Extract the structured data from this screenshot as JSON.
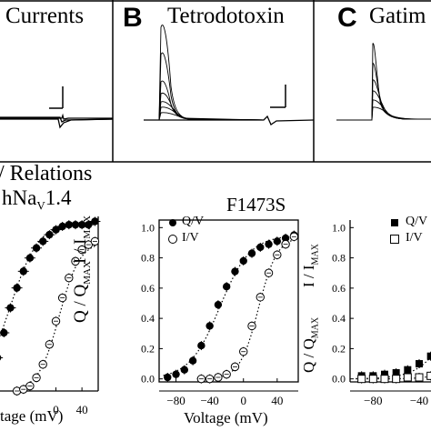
{
  "panels": {
    "a_title": "Currents",
    "b_letter": "B",
    "b_title": "Tetrodotoxin",
    "c_letter": "C",
    "c_title": "Gatim",
    "section_title": "Relations",
    "left_title": "hNa",
    "left_title_sub": "V",
    "left_title_suffix": "1.4",
    "mid_title": "F1473S"
  },
  "axes": {
    "xlabel": "Voltage (mV)",
    "xlabel_left": "tage (mV)",
    "ylabel_mid_q": "Q / Q",
    "ylabel_mid_q_sub": "MAX",
    "ylabel_mid_i": "I / I",
    "ylabel_mid_i_sub": "MAX",
    "ylabel_right_i": "I / I",
    "ylabel_right_i_sub": "MAX",
    "ylabel_right_q": "Q / Q",
    "ylabel_right_q_sub": "MAX"
  },
  "legend": {
    "qv": "Q/V",
    "iv": "I/V"
  },
  "chart_data": [
    {
      "type": "scatter",
      "panel": "left",
      "series": [
        {
          "marker": "filled-cross-circle",
          "x": [
            -90,
            -80,
            -70,
            -60,
            -50,
            -40,
            -30,
            -20,
            -10,
            0,
            10,
            20,
            30,
            40,
            50,
            60
          ],
          "y": [
            0.2,
            0.35,
            0.5,
            0.62,
            0.72,
            0.8,
            0.86,
            0.9,
            0.94,
            0.97,
            0.99,
            1.0,
            1.0,
            1.0,
            1.0,
            1.02
          ]
        },
        {
          "marker": "open-circle",
          "x": [
            -60,
            -50,
            -40,
            -30,
            -20,
            -10,
            0,
            10,
            20,
            30,
            40,
            50,
            60
          ],
          "y": [
            0.0,
            0.01,
            0.03,
            0.08,
            0.16,
            0.28,
            0.42,
            0.56,
            0.68,
            0.78,
            0.85,
            0.88,
            0.9
          ]
        }
      ],
      "xticks": [
        0,
        40
      ],
      "xlim": [
        -100,
        65
      ],
      "ylim": [
        0,
        1.05
      ]
    },
    {
      "type": "scatter",
      "panel": "F1473S",
      "title": "F1473S",
      "series": [
        {
          "name": "Q/V",
          "marker": "filled-circle",
          "x": [
            -90,
            -80,
            -70,
            -60,
            -50,
            -40,
            -30,
            -20,
            -10,
            0,
            10,
            20,
            30,
            40,
            50,
            60
          ],
          "y": [
            0.01,
            0.03,
            0.06,
            0.12,
            0.22,
            0.35,
            0.49,
            0.61,
            0.71,
            0.78,
            0.83,
            0.87,
            0.89,
            0.91,
            0.93,
            0.95
          ]
        },
        {
          "name": "I/V",
          "marker": "open-circle",
          "x": [
            -50,
            -40,
            -30,
            -20,
            -10,
            0,
            10,
            20,
            30,
            40,
            50,
            60
          ],
          "y": [
            0.0,
            0.0,
            0.01,
            0.03,
            0.08,
            0.18,
            0.35,
            0.54,
            0.7,
            0.82,
            0.89,
            0.94
          ]
        }
      ],
      "xticks": [
        -80,
        -40,
        0,
        40
      ],
      "yticks": [
        0.0,
        0.2,
        0.4,
        0.6,
        0.8,
        1.0
      ],
      "xlim": [
        -100,
        65
      ],
      "ylim": [
        -0.02,
        1.05
      ]
    },
    {
      "type": "scatter",
      "panel": "right",
      "series": [
        {
          "name": "Q/V",
          "marker": "filled-square",
          "x": [
            -90,
            -80,
            -70,
            -60,
            -50,
            -40,
            -30
          ],
          "y": [
            0.02,
            0.02,
            0.03,
            0.04,
            0.06,
            0.1,
            0.15
          ]
        },
        {
          "name": "I/V",
          "marker": "open-square",
          "x": [
            -90,
            -80,
            -70,
            -60,
            -50,
            -40,
            -30
          ],
          "y": [
            0.0,
            0.0,
            0.0,
            0.0,
            0.01,
            0.01,
            0.02
          ]
        }
      ],
      "xticks": [
        -80,
        -40
      ],
      "yticks": [
        0.0,
        0.2,
        0.4,
        0.6,
        0.8,
        1.0
      ],
      "xlim": [
        -100,
        -25
      ],
      "ylim": [
        -0.02,
        1.05
      ]
    }
  ]
}
